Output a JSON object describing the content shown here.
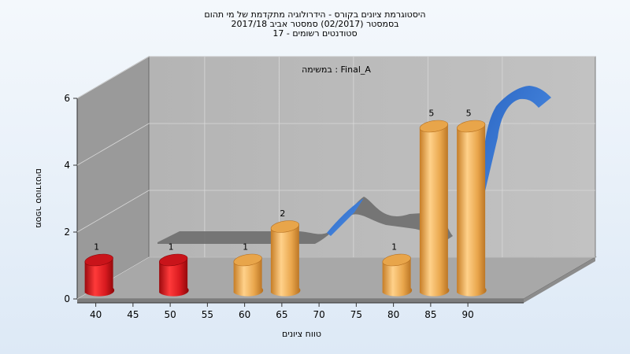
{
  "title_lines": [
    "היסטוגרמת ציונים בקורס - הידרולוגיה מתקדמת של מי תהום",
    "בסמסטר  (02/2017)  סמסטר אביב 2017/18",
    "סטודנטים רשומים - 17"
  ],
  "chart_data": {
    "type": "bar",
    "title": "היסטוגרמת ציונים בקורס - הידרולוגיה מתקדמת של מי תהום",
    "xlabel": "טווח ציונים",
    "ylabel": "מספר סטודנטים",
    "legend_label": "במשימה : Final_A",
    "legend_position": "top-center",
    "x_ticks": [
      "40",
      "45",
      "50",
      "55",
      "60",
      "65",
      "70",
      "75",
      "80",
      "85",
      "90"
    ],
    "y_ticks": [
      "0",
      "2",
      "4",
      "6"
    ],
    "ylim": [
      0,
      6
    ],
    "grid": true,
    "bars": [
      {
        "x": 40,
        "value": 1,
        "label": "1",
        "color": "red"
      },
      {
        "x": 50,
        "value": 1,
        "label": "1",
        "color": "red"
      },
      {
        "x": 60,
        "value": 1,
        "label": "1",
        "color": "orange"
      },
      {
        "x": 65,
        "value": 2,
        "label": "2",
        "color": "orange"
      },
      {
        "x": 80,
        "value": 1,
        "label": "1",
        "color": "orange"
      },
      {
        "x": 85,
        "value": 5,
        "label": "5",
        "color": "orange"
      },
      {
        "x": 90,
        "value": 5,
        "label": "5",
        "color": "orange"
      }
    ],
    "colors": {
      "red": "#e0161c",
      "orange": "#e8a54a",
      "ribbon_gray": "#6e6e6e",
      "ribbon_blue": "#3575d0"
    }
  }
}
